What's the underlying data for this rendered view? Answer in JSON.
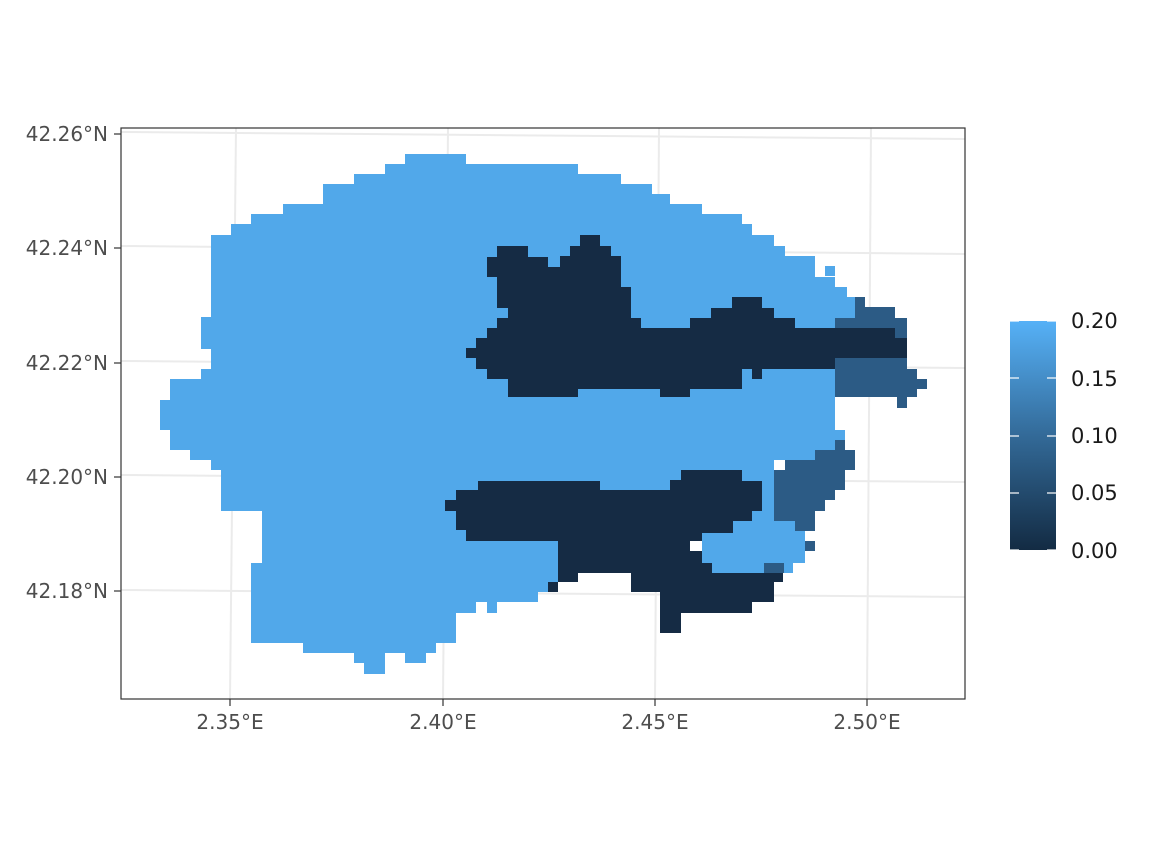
{
  "map": {
    "type": "raster",
    "x_axis": {
      "ticks": [
        2.35,
        2.4,
        2.45,
        2.5
      ],
      "tick_labels": [
        "2.35°E",
        "2.40°E",
        "2.45°E",
        "2.50°E"
      ],
      "range": [
        2.324,
        2.522
      ]
    },
    "y_axis": {
      "ticks": [
        42.18,
        42.2,
        42.22,
        42.24,
        42.26
      ],
      "tick_labels": [
        "42.18°N",
        "42.20°N",
        "42.22°N",
        "42.24°N",
        "42.26°N"
      ],
      "range": [
        42.164,
        42.261
      ]
    },
    "grid": true,
    "panel_border": true
  },
  "legend": {
    "position": "right",
    "type": "colorbar",
    "range": [
      0,
      0.2
    ],
    "labels": [
      "0.20",
      "0.15",
      "0.10",
      "0.05",
      "0.00"
    ],
    "colors": {
      "low": "#132b43",
      "high": "#56b1f7"
    }
  },
  "regions": [
    {
      "name": "light-region",
      "value": 0.2,
      "color": "#51a8ea"
    },
    {
      "name": "dark-upper-band",
      "value": 0.0,
      "color": "#152b44"
    },
    {
      "name": "dark-lower-band",
      "value": 0.0,
      "color": "#152b44"
    },
    {
      "name": "medium-east-patch",
      "value": 0.07,
      "color": "#2c5b85"
    },
    {
      "name": "medium-southeast-patch",
      "value": 0.07,
      "color": "#2c5b85"
    }
  ]
}
